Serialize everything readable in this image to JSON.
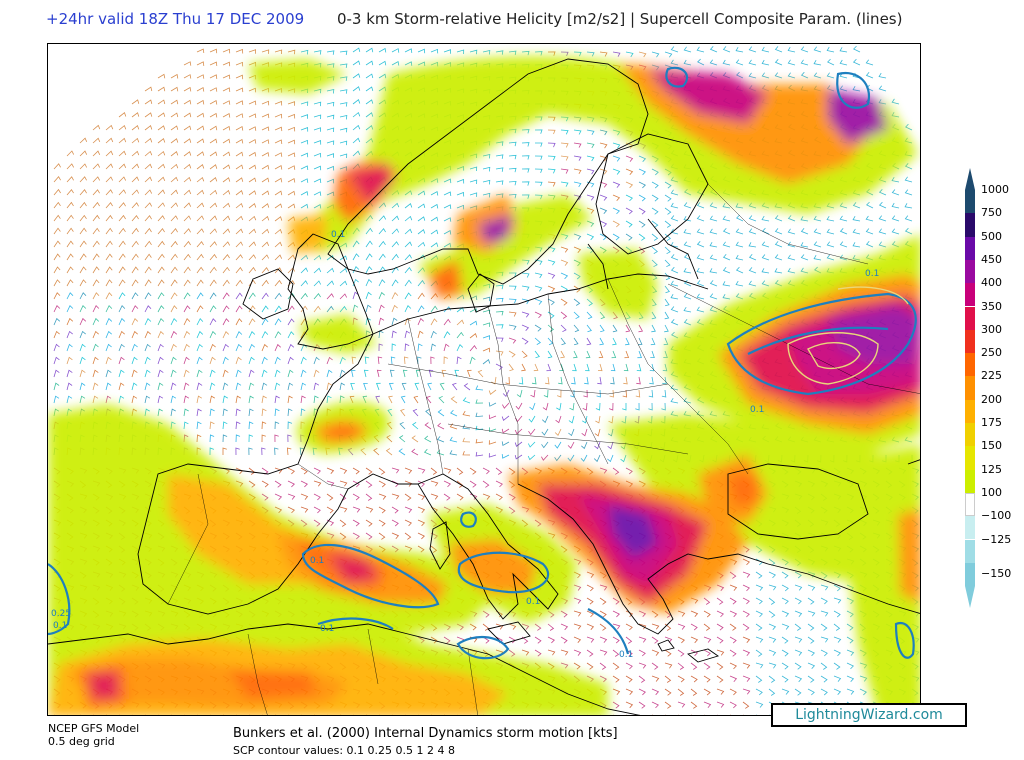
{
  "header": {
    "valid": "+24hr valid 18Z Thu 17 DEC 2009",
    "title": "0-3 km Storm-relative Helicity [m2/s2] | Supercell Composite Param. (lines)"
  },
  "legend": {
    "items": [
      {
        "label": "1000",
        "color": "#1d4a6e"
      },
      {
        "label": "750",
        "color": "#2a0a6a"
      },
      {
        "label": "500",
        "color": "#6a0aa8"
      },
      {
        "label": "450",
        "color": "#9a0aa0"
      },
      {
        "label": "400",
        "color": "#c8007a"
      },
      {
        "label": "350",
        "color": "#e0104a"
      },
      {
        "label": "300",
        "color": "#f0301e"
      },
      {
        "label": "250",
        "color": "#ff6600"
      },
      {
        "label": "225",
        "color": "#ff9000"
      },
      {
        "label": "200",
        "color": "#ffb000"
      },
      {
        "label": "175",
        "color": "#f0d000"
      },
      {
        "label": "150",
        "color": "#e6e600"
      },
      {
        "label": "125",
        "color": "#ccee00"
      },
      {
        "label": "100",
        "color": "#ffffff"
      },
      {
        "label": "−100",
        "color": "#c8eef0"
      },
      {
        "label": "−125",
        "color": "#a0dde6"
      },
      {
        "label": "−150",
        "color": "#80ccdc"
      }
    ]
  },
  "contour_labels": [
    "0.1",
    "0.1",
    "0.1",
    "0.1",
    "0.1",
    "0.1",
    "0.1",
    "0.1",
    "0.25"
  ],
  "footer": {
    "model": "NCEP GFS Model",
    "grid": "0.5 deg grid",
    "storm_motion": "Bunkers et al. (2000) Internal Dynamics storm motion [kts]",
    "scp_values": "SCP contour values: 0.1 0.25 0.5 1 2 4 8"
  },
  "brand": "LightningWizard.com"
}
